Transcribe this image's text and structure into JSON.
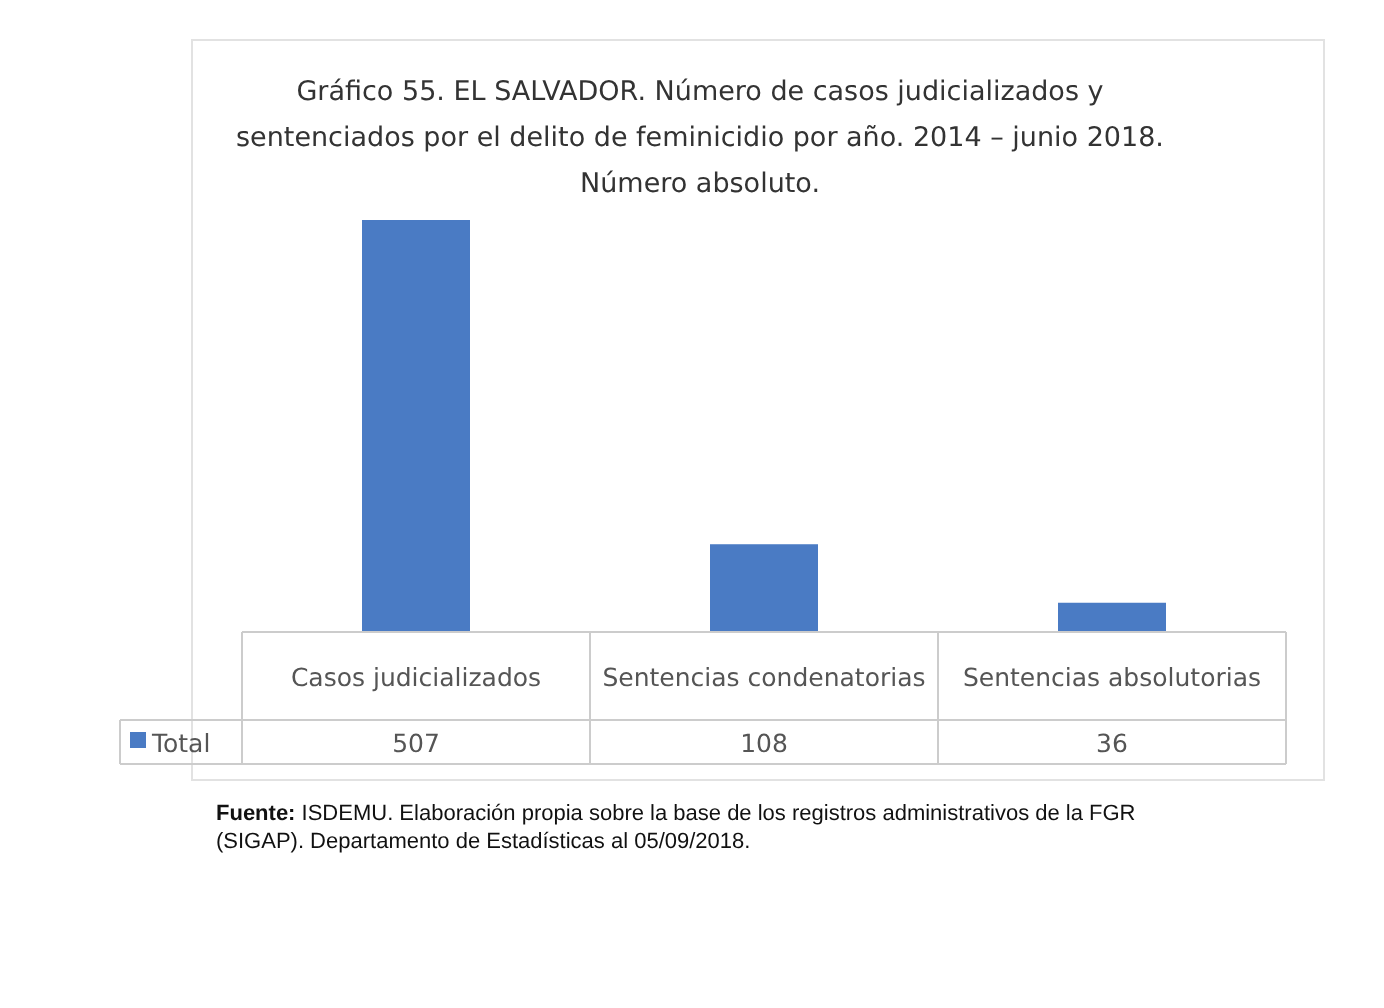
{
  "chart_data": {
    "type": "bar",
    "title": "Gráfico 55. EL SALVADOR. Número de casos judicializados y sentenciados por el delito de feminicidio por año. 2014 – junio 2018. Número absoluto.",
    "categories": [
      "Casos judicializados",
      "Sentencias condenatorias",
      "Sentencias absolutorias"
    ],
    "series": [
      {
        "name": "Total",
        "color": "#4a7bc4",
        "values": [
          507,
          108,
          36
        ]
      }
    ],
    "data_labels": true,
    "legend": "bottom",
    "annotations": [
      "Fuente: ISDEMU. Elaboración propia sobre la base de los registros administrativos de la FGR (SIGAP). Departamento de Estadísticas al 05/09/2018."
    ]
  }
}
